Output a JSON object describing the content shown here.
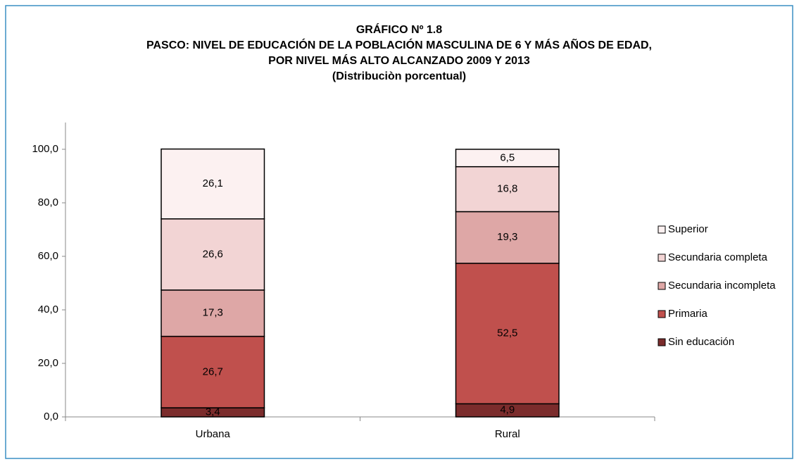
{
  "chart_data": {
    "type": "stacked_bar",
    "title": "GRÁFICO Nº 1.8",
    "subtitle": [
      "PASCO: NIVEL DE EDUCACIÓN DE LA POBLACIÓN MASCULINA DE 6 Y MÁS AÑOS DE EDAD,",
      "POR NIVEL MÁS ALTO ALCANZADO 2009 Y 2013",
      "(Distribuciòn porcentual)"
    ],
    "categories": [
      "Urbana",
      "Rural"
    ],
    "series": [
      {
        "name": "Sin educación",
        "color": "#7b2c2c",
        "values": [
          3.4,
          4.9
        ],
        "value_labels": [
          "3,4",
          "4,9"
        ]
      },
      {
        "name": "Primaria",
        "color": "#c0504d",
        "values": [
          26.7,
          52.5
        ],
        "value_labels": [
          "26,7",
          "52,5"
        ]
      },
      {
        "name": "Secundaria incompleta",
        "color": "#dea7a6",
        "values": [
          17.3,
          19.3
        ],
        "value_labels": [
          "17,3",
          "19,3"
        ]
      },
      {
        "name": "Secundaria completa",
        "color": "#f2d4d4",
        "values": [
          26.6,
          16.8
        ],
        "value_labels": [
          "26,6",
          "16,8"
        ]
      },
      {
        "name": "Superior",
        "color": "#fcf1f1",
        "values": [
          26.1,
          6.5
        ],
        "value_labels": [
          "26,1",
          "6,5"
        ]
      }
    ],
    "ylim": [
      0,
      110
    ],
    "yticks": [
      {
        "value": 0,
        "label": "0,0"
      },
      {
        "value": 20,
        "label": "20,0"
      },
      {
        "value": 40,
        "label": "40,0"
      },
      {
        "value": 60,
        "label": "60,0"
      },
      {
        "value": 80,
        "label": "80,0"
      },
      {
        "value": 100,
        "label": "100,0"
      }
    ],
    "legend": "right"
  }
}
